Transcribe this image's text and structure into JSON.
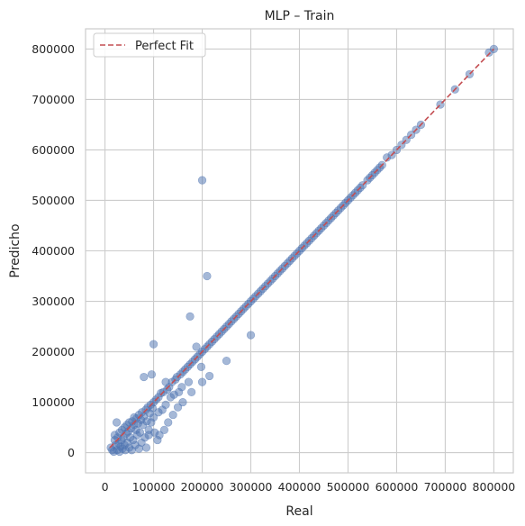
{
  "chart_data": {
    "type": "scatter",
    "title": "MLP – Train",
    "xlabel": "Real",
    "ylabel": "Predicho",
    "xlim": [
      -40000,
      840000
    ],
    "ylim": [
      -40000,
      840000
    ],
    "x_ticks": [
      0,
      100000,
      200000,
      300000,
      400000,
      500000,
      600000,
      700000,
      800000
    ],
    "y_ticks": [
      0,
      100000,
      200000,
      300000,
      400000,
      500000,
      600000,
      700000,
      800000
    ],
    "x_tick_labels": [
      "0",
      "100000",
      "200000",
      "300000",
      "400000",
      "500000",
      "600000",
      "700000",
      "800000"
    ],
    "y_tick_labels": [
      "0",
      "100000",
      "200000",
      "300000",
      "400000",
      "500000",
      "600000",
      "700000",
      "800000"
    ],
    "grid": true,
    "legend_position": "top-left",
    "colors": {
      "points": "#4c72b0",
      "reference_line": "#c44e52",
      "grid": "#cccccc",
      "axes_edge": "#cccccc"
    },
    "reference_line": {
      "name": "Perfect Fit",
      "style": "dashed",
      "x": [
        10000,
        800000
      ],
      "y": [
        10000,
        800000
      ]
    },
    "series": [
      {
        "marker": "circle",
        "alpha": 0.5,
        "points": [
          [
            12000,
            10000
          ],
          [
            15000,
            5000
          ],
          [
            18000,
            2000
          ],
          [
            20000,
            25000
          ],
          [
            20000,
            35000
          ],
          [
            22000,
            15000
          ],
          [
            24000,
            60000
          ],
          [
            25000,
            5000
          ],
          [
            26000,
            30000
          ],
          [
            28000,
            18000
          ],
          [
            30000,
            2000
          ],
          [
            30000,
            40000
          ],
          [
            32000,
            12000
          ],
          [
            34000,
            25000
          ],
          [
            35000,
            45000
          ],
          [
            36000,
            8000
          ],
          [
            38000,
            30000
          ],
          [
            40000,
            50000
          ],
          [
            40000,
            15000
          ],
          [
            42000,
            5000
          ],
          [
            44000,
            38000
          ],
          [
            45000,
            55000
          ],
          [
            46000,
            20000
          ],
          [
            48000,
            42000
          ],
          [
            50000,
            10000
          ],
          [
            50000,
            60000
          ],
          [
            52000,
            30000
          ],
          [
            54000,
            48000
          ],
          [
            55000,
            5000
          ],
          [
            56000,
            62000
          ],
          [
            58000,
            25000
          ],
          [
            60000,
            55000
          ],
          [
            60000,
            70000
          ],
          [
            62000,
            15000
          ],
          [
            64000,
            45000
          ],
          [
            65000,
            68000
          ],
          [
            66000,
            35000
          ],
          [
            68000,
            58000
          ],
          [
            70000,
            8000
          ],
          [
            70000,
            75000
          ],
          [
            72000,
            40000
          ],
          [
            74000,
            65000
          ],
          [
            75000,
            20000
          ],
          [
            76000,
            80000
          ],
          [
            78000,
            55000
          ],
          [
            80000,
            150000
          ],
          [
            80000,
            72000
          ],
          [
            82000,
            30000
          ],
          [
            84000,
            85000
          ],
          [
            85000,
            10000
          ],
          [
            86000,
            62000
          ],
          [
            88000,
            90000
          ],
          [
            90000,
            45000
          ],
          [
            90000,
            35000
          ],
          [
            92000,
            78000
          ],
          [
            94000,
            95000
          ],
          [
            95000,
            60000
          ],
          [
            96000,
            155000
          ],
          [
            98000,
            88000
          ],
          [
            100000,
            215000
          ],
          [
            100000,
            100000
          ],
          [
            100000,
            70000
          ],
          [
            102000,
            40000
          ],
          [
            105000,
            105000
          ],
          [
            108000,
            25000
          ],
          [
            110000,
            110000
          ],
          [
            110000,
            80000
          ],
          [
            112000,
            35000
          ],
          [
            115000,
            118000
          ],
          [
            118000,
            85000
          ],
          [
            120000,
            120000
          ],
          [
            122000,
            45000
          ],
          [
            125000,
            140000
          ],
          [
            125000,
            95000
          ],
          [
            128000,
            125000
          ],
          [
            130000,
            60000
          ],
          [
            132000,
            130000
          ],
          [
            135000,
            110000
          ],
          [
            138000,
            140000
          ],
          [
            140000,
            75000
          ],
          [
            142000,
            115000
          ],
          [
            145000,
            145000
          ],
          [
            148000,
            150000
          ],
          [
            150000,
            90000
          ],
          [
            152000,
            120000
          ],
          [
            155000,
            155000
          ],
          [
            158000,
            130000
          ],
          [
            160000,
            160000
          ],
          [
            160000,
            100000
          ],
          [
            165000,
            165000
          ],
          [
            170000,
            170000
          ],
          [
            172000,
            140000
          ],
          [
            175000,
            270000
          ],
          [
            175000,
            175000
          ],
          [
            178000,
            120000
          ],
          [
            180000,
            180000
          ],
          [
            185000,
            185000
          ],
          [
            188000,
            210000
          ],
          [
            190000,
            190000
          ],
          [
            195000,
            195000
          ],
          [
            198000,
            170000
          ],
          [
            200000,
            540000
          ],
          [
            200000,
            140000
          ],
          [
            200000,
            200000
          ],
          [
            205000,
            205000
          ],
          [
            210000,
            350000
          ],
          [
            210000,
            210000
          ],
          [
            215000,
            152000
          ],
          [
            215000,
            215000
          ],
          [
            220000,
            220000
          ],
          [
            225000,
            225000
          ],
          [
            230000,
            230000
          ],
          [
            235000,
            235000
          ],
          [
            240000,
            240000
          ],
          [
            245000,
            245000
          ],
          [
            250000,
            182000
          ],
          [
            250000,
            250000
          ],
          [
            255000,
            255000
          ],
          [
            260000,
            260000
          ],
          [
            265000,
            265000
          ],
          [
            270000,
            270000
          ],
          [
            275000,
            275000
          ],
          [
            280000,
            280000
          ],
          [
            285000,
            285000
          ],
          [
            290000,
            290000
          ],
          [
            295000,
            295000
          ],
          [
            300000,
            233000
          ],
          [
            300000,
            300000
          ],
          [
            305000,
            305000
          ],
          [
            310000,
            310000
          ],
          [
            315000,
            315000
          ],
          [
            320000,
            320000
          ],
          [
            325000,
            325000
          ],
          [
            330000,
            330000
          ],
          [
            335000,
            335000
          ],
          [
            340000,
            340000
          ],
          [
            345000,
            345000
          ],
          [
            350000,
            350000
          ],
          [
            355000,
            355000
          ],
          [
            360000,
            360000
          ],
          [
            365000,
            365000
          ],
          [
            370000,
            370000
          ],
          [
            375000,
            375000
          ],
          [
            380000,
            380000
          ],
          [
            385000,
            385000
          ],
          [
            390000,
            390000
          ],
          [
            395000,
            395000
          ],
          [
            400000,
            400000
          ],
          [
            405000,
            405000
          ],
          [
            410000,
            410000
          ],
          [
            415000,
            415000
          ],
          [
            420000,
            420000
          ],
          [
            425000,
            425000
          ],
          [
            430000,
            430000
          ],
          [
            435000,
            435000
          ],
          [
            440000,
            440000
          ],
          [
            445000,
            445000
          ],
          [
            450000,
            450000
          ],
          [
            455000,
            455000
          ],
          [
            460000,
            460000
          ],
          [
            465000,
            465000
          ],
          [
            470000,
            470000
          ],
          [
            475000,
            475000
          ],
          [
            480000,
            480000
          ],
          [
            485000,
            485000
          ],
          [
            490000,
            490000
          ],
          [
            495000,
            495000
          ],
          [
            500000,
            500000
          ],
          [
            505000,
            505000
          ],
          [
            510000,
            510000
          ],
          [
            515000,
            515000
          ],
          [
            520000,
            520000
          ],
          [
            525000,
            525000
          ],
          [
            530000,
            530000
          ],
          [
            540000,
            540000
          ],
          [
            545000,
            545000
          ],
          [
            550000,
            550000
          ],
          [
            555000,
            555000
          ],
          [
            560000,
            560000
          ],
          [
            565000,
            565000
          ],
          [
            570000,
            570000
          ],
          [
            580000,
            585000
          ],
          [
            590000,
            590000
          ],
          [
            600000,
            600000
          ],
          [
            610000,
            610000
          ],
          [
            620000,
            620000
          ],
          [
            630000,
            630000
          ],
          [
            640000,
            640000
          ],
          [
            650000,
            650000
          ],
          [
            690000,
            690000
          ],
          [
            720000,
            720000
          ],
          [
            750000,
            750000
          ],
          [
            790000,
            793000
          ],
          [
            800000,
            800000
          ]
        ]
      }
    ]
  }
}
